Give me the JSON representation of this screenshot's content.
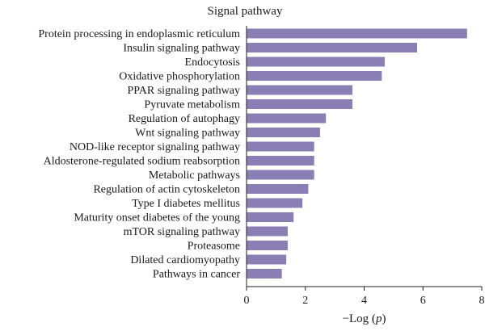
{
  "chart_data": {
    "type": "bar",
    "orientation": "horizontal",
    "title": "Signal pathway",
    "xlabel": "−Log (p)",
    "ylabel": "",
    "xlim": [
      0,
      8
    ],
    "xticks": [
      0,
      2,
      4,
      6,
      8
    ],
    "grid": false,
    "legend": "none",
    "bar_color": "#8a7fb5",
    "categories": [
      "Protein processing in endoplasmic reticulum",
      "Insulin signaling pathway",
      "Endocytosis",
      "Oxidative phosphorylation",
      "PPAR signaling pathway",
      "Pyruvate metabolism",
      "Regulation of autophagy",
      "Wnt signaling pathway",
      "NOD-like receptor signaling pathway",
      "Aldosterone-regulated sodium reabsorption",
      "Metabolic pathways",
      "Regulation of actin cytoskeleton",
      "Type I diabetes mellitus",
      "Maturity onset diabetes of the young",
      "mTOR signaling pathway",
      "Proteasome",
      "Dilated cardiomyopathy",
      "Pathways in cancer"
    ],
    "values": [
      7.5,
      5.8,
      4.7,
      4.6,
      3.6,
      3.6,
      2.7,
      2.5,
      2.3,
      2.3,
      2.3,
      2.1,
      1.9,
      1.6,
      1.4,
      1.4,
      1.35,
      1.2
    ]
  }
}
